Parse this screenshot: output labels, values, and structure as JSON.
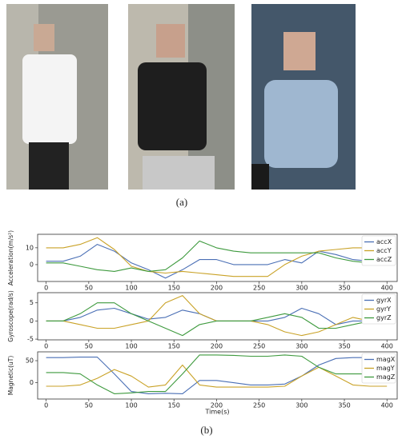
{
  "panel_labels": [
    "(a)",
    "(b)"
  ],
  "chart_data": [
    {
      "type": "line",
      "ylabel": "Acceleration(m/s²)",
      "x": [
        0,
        20,
        40,
        60,
        80,
        100,
        120,
        140,
        160,
        180,
        200,
        220,
        240,
        260,
        280,
        300,
        320,
        340,
        360,
        380,
        400
      ],
      "xlim": [
        -10,
        412
      ],
      "xticks": [
        0,
        50,
        100,
        150,
        200,
        250,
        300,
        350,
        400
      ],
      "ylim": [
        -10,
        18
      ],
      "yticks": [
        0,
        10
      ],
      "legend": "upper right",
      "series": [
        {
          "name": "accX",
          "color": "#4a6fb5",
          "values": [
            2,
            2,
            5,
            12,
            8,
            1,
            -3,
            -8,
            -3,
            3,
            3,
            0,
            0,
            0,
            3,
            1,
            8,
            6,
            3,
            2,
            2
          ]
        },
        {
          "name": "accY",
          "color": "#c9a227",
          "values": [
            10,
            10,
            12,
            16,
            9,
            -1,
            -4,
            -5,
            -4,
            -5,
            -6,
            -7,
            -7,
            -7,
            0,
            5,
            8,
            9,
            10,
            10,
            10
          ]
        },
        {
          "name": "accZ",
          "color": "#3e9a3e",
          "values": [
            1,
            1,
            -1,
            -3,
            -4,
            -2,
            -4,
            -3,
            4,
            14,
            10,
            8,
            7,
            7,
            7,
            7,
            7,
            4,
            2,
            1,
            1
          ]
        }
      ]
    },
    {
      "type": "line",
      "ylabel": "Gyroscope(rad/s)",
      "x": [
        0,
        20,
        40,
        60,
        80,
        100,
        120,
        140,
        160,
        180,
        200,
        220,
        240,
        260,
        280,
        300,
        320,
        340,
        360,
        380,
        400
      ],
      "xlim": [
        -10,
        412
      ],
      "xticks": [
        0,
        50,
        100,
        150,
        200,
        250,
        300,
        350,
        400
      ],
      "ylim": [
        -5.2,
        7.8
      ],
      "yticks": [
        -5,
        0,
        5
      ],
      "legend": "upper right",
      "series": [
        {
          "name": "gyrX",
          "color": "#4a6fb5",
          "values": [
            0,
            0,
            1,
            3,
            3.5,
            2,
            0.5,
            1,
            3,
            2,
            0,
            0,
            0,
            0,
            1,
            3.5,
            2,
            -1,
            0,
            0,
            0
          ]
        },
        {
          "name": "gyrY",
          "color": "#c9a227",
          "values": [
            0,
            0,
            -1,
            -2,
            -2,
            -1,
            0,
            5,
            7,
            2,
            0,
            0,
            0,
            -1,
            -3,
            -4,
            -3,
            -1,
            1,
            0,
            0
          ]
        },
        {
          "name": "gyrZ",
          "color": "#3e9a3e",
          "values": [
            0,
            0,
            2,
            5,
            5,
            2,
            0,
            -2,
            -4,
            -1,
            0,
            0,
            0,
            1,
            2,
            1,
            -2,
            -2,
            -1,
            0,
            0
          ]
        }
      ]
    },
    {
      "type": "line",
      "ylabel": "Magnetic(uT)",
      "xlabel": "Time(s)",
      "x": [
        0,
        20,
        40,
        60,
        80,
        100,
        120,
        140,
        160,
        180,
        200,
        220,
        240,
        260,
        280,
        300,
        320,
        340,
        360,
        380,
        400
      ],
      "xlim": [
        -10,
        412
      ],
      "xticks": [
        0,
        50,
        100,
        150,
        200,
        250,
        300,
        350,
        400
      ],
      "ylim": [
        -37,
        70
      ],
      "yticks": [
        0,
        50
      ],
      "legend": "upper right",
      "series": [
        {
          "name": "magX",
          "color": "#4a6fb5",
          "values": [
            57,
            57,
            58,
            58,
            20,
            -20,
            -25,
            -24,
            -25,
            5,
            5,
            0,
            -5,
            -5,
            -3,
            15,
            40,
            55,
            57,
            57,
            57
          ]
        },
        {
          "name": "magY",
          "color": "#c9a227",
          "values": [
            -8,
            -8,
            -5,
            10,
            30,
            15,
            -10,
            -5,
            40,
            -5,
            -10,
            -10,
            -10,
            -10,
            -8,
            15,
            35,
            15,
            -5,
            -8,
            -8
          ]
        },
        {
          "name": "magZ",
          "color": "#3e9a3e",
          "values": [
            23,
            23,
            20,
            -5,
            -25,
            -23,
            -20,
            -20,
            20,
            63,
            63,
            62,
            60,
            60,
            63,
            60,
            35,
            20,
            20,
            20,
            20
          ]
        }
      ]
    }
  ]
}
